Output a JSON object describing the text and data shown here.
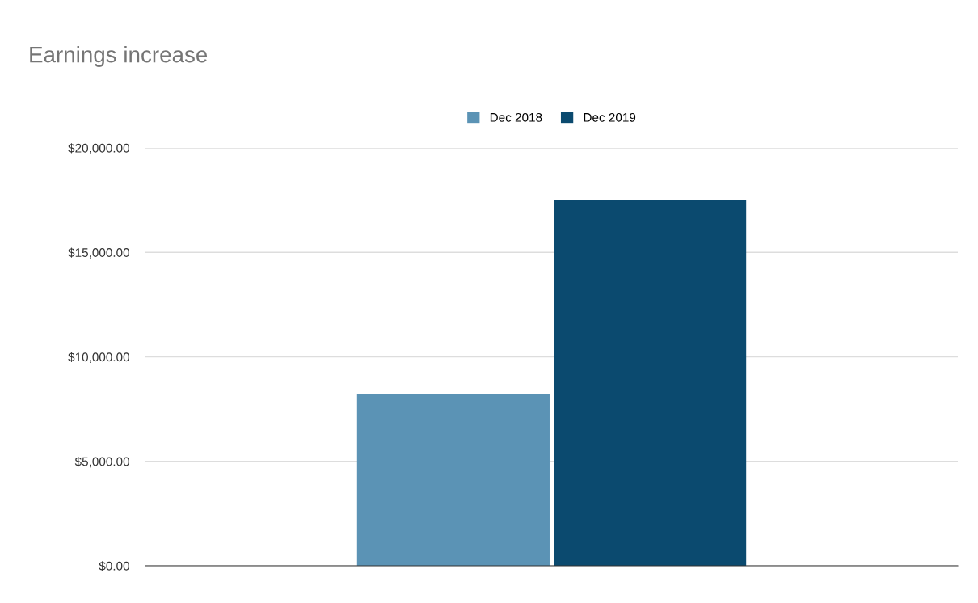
{
  "chart_data": {
    "type": "bar",
    "title": "Earnings increase",
    "categories": [
      null
    ],
    "series": [
      {
        "name": "Dec 2018",
        "color": "#5b93b5",
        "values": [
          8200
        ]
      },
      {
        "name": "Dec 2019",
        "color": "#0b4a6f",
        "values": [
          17500
        ]
      }
    ],
    "ylim": [
      0,
      20000
    ],
    "yticks": [
      {
        "value": 0,
        "label": "$0.00"
      },
      {
        "value": 5000,
        "label": "$5,000.00"
      },
      {
        "value": 10000,
        "label": "$10,000.00"
      },
      {
        "value": 15000,
        "label": "$15,000.00"
      },
      {
        "value": 20000,
        "label": "$20,000.00"
      }
    ],
    "grid": "y",
    "legend": "top"
  }
}
